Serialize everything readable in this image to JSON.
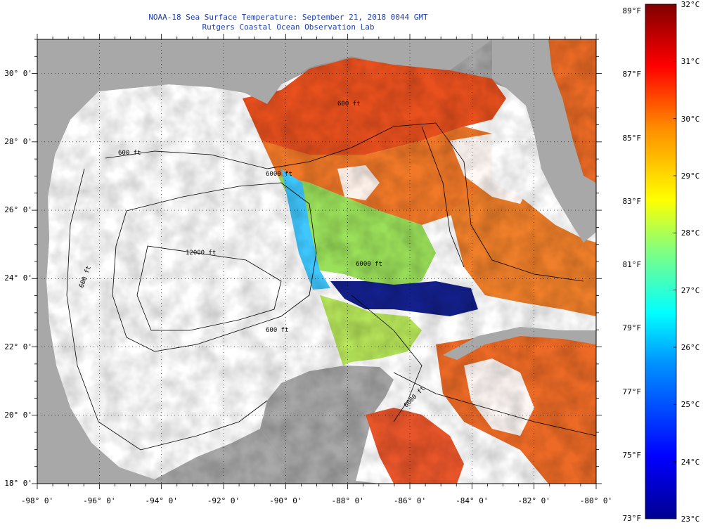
{
  "title_line1": "NOAA-18 Sea Surface Temperature:  September 21, 2018 0044 GMT",
  "title_line2": "Rutgers Coastal Ocean Observation Lab",
  "map": {
    "lon_range": [
      -98,
      -80
    ],
    "lat_range": [
      18,
      31
    ],
    "land_color": "#a8a8a8",
    "nodata_color": "#ffffff",
    "graticule_step_deg": 2,
    "y_ticks": [
      "30° 0'",
      "28° 0'",
      "26° 0'",
      "24° 0'",
      "22° 0'",
      "20° 0'",
      "18° 0'"
    ],
    "x_ticks": [
      "-98° 0'",
      "-96° 0'",
      "-94° 0'",
      "-92° 0'",
      "-90° 0'",
      "-88° 0'",
      "-86° 0'",
      "-84° 0'",
      "-82° 0'",
      "-80° 0'"
    ],
    "contour_labels": [
      "600 ft",
      "6000 ft",
      "12000 ft",
      "600 ft",
      "600 ft",
      "6000 ft",
      "600 ft",
      "6000 ft"
    ]
  },
  "colorbar": {
    "f_labels": [
      "89°F",
      "87°F",
      "85°F",
      "83°F",
      "81°F",
      "79°F",
      "77°F",
      "75°F",
      "73°F"
    ],
    "c_labels": [
      "32°C",
      "31°C",
      "30°C",
      "29°C",
      "28°C",
      "27°C",
      "26°C",
      "25°C",
      "24°C",
      "23°C"
    ],
    "range_c": [
      23,
      32
    ]
  }
}
